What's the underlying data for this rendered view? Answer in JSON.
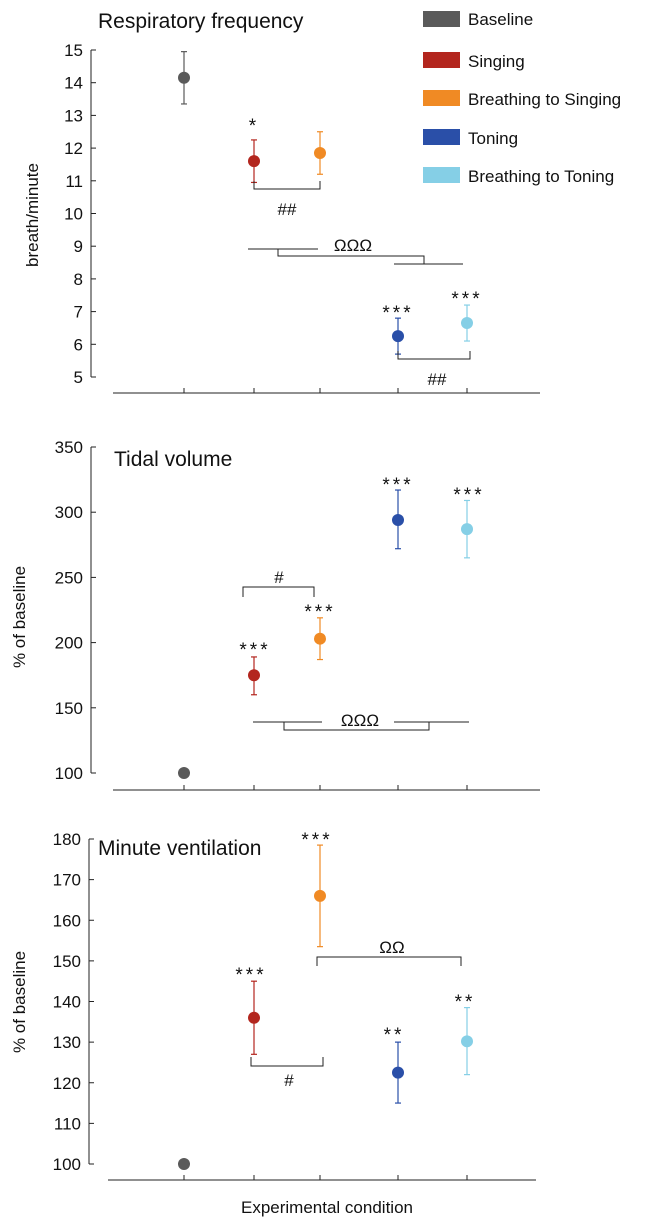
{
  "xlabel": "Experimental condition",
  "legend": [
    {
      "label": "Baseline",
      "color": "#5a5a5a"
    },
    {
      "label": "Singing",
      "color": "#b3261e"
    },
    {
      "label": "Breathing to Singing",
      "color": "#f08a24"
    },
    {
      "label": "Toning",
      "color": "#2a4fa8"
    },
    {
      "label": "Breathing to Toning",
      "color": "#85cfe6"
    }
  ],
  "chart_data": [
    {
      "type": "scatter",
      "title": "Respiratory frequency",
      "ylabel": "breath/minute",
      "ylim": [
        5,
        15
      ],
      "yticks": [
        5,
        6,
        7,
        8,
        9,
        10,
        11,
        12,
        13,
        14,
        15
      ],
      "categories": [
        "Baseline",
        "Singing",
        "Breathing to Singing",
        "Toning",
        "Breathing to Toning"
      ],
      "series": [
        {
          "values": [
            14.15,
            11.6,
            11.85,
            6.25,
            6.65
          ]
        }
      ],
      "error": [
        [
          13.35,
          14.95
        ],
        [
          10.95,
          12.25
        ],
        [
          11.2,
          12.5
        ],
        [
          5.7,
          6.8
        ],
        [
          6.1,
          7.2
        ]
      ],
      "significance": [
        "",
        "*",
        "",
        "***",
        "***"
      ],
      "annotations": [
        "##",
        "ΩΩΩ",
        "##"
      ]
    },
    {
      "type": "scatter",
      "title": "Tidal volume",
      "ylabel": "% of baseline",
      "ylim": [
        100,
        350
      ],
      "yticks": [
        100,
        150,
        200,
        250,
        300,
        350
      ],
      "categories": [
        "Baseline",
        "Singing",
        "Breathing to Singing",
        "Toning",
        "Breathing to Toning"
      ],
      "series": [
        {
          "values": [
            100,
            175,
            203,
            294,
            287
          ]
        }
      ],
      "error": [
        [
          100,
          100
        ],
        [
          160,
          189
        ],
        [
          187,
          219
        ],
        [
          272,
          317
        ],
        [
          265,
          309
        ]
      ],
      "significance": [
        "",
        "***",
        "***",
        "***",
        "***"
      ],
      "annotations": [
        "#",
        "ΩΩΩ"
      ]
    },
    {
      "type": "scatter",
      "title": "Minute ventilation",
      "ylabel": "% of baseline",
      "ylim": [
        100,
        180
      ],
      "yticks": [
        100,
        110,
        120,
        130,
        140,
        150,
        160,
        170,
        180
      ],
      "categories": [
        "Baseline",
        "Singing",
        "Breathing to Singing",
        "Toning",
        "Breathing to Toning"
      ],
      "series": [
        {
          "values": [
            100,
            136,
            166,
            122.5,
            130.2
          ]
        }
      ],
      "error": [
        [
          100,
          100
        ],
        [
          127,
          145
        ],
        [
          153.5,
          178.5
        ],
        [
          115,
          130
        ],
        [
          122,
          138.5
        ]
      ],
      "significance": [
        "",
        "***",
        "***",
        "**",
        "**"
      ],
      "annotations": [
        "#",
        "ΩΩ"
      ]
    }
  ]
}
